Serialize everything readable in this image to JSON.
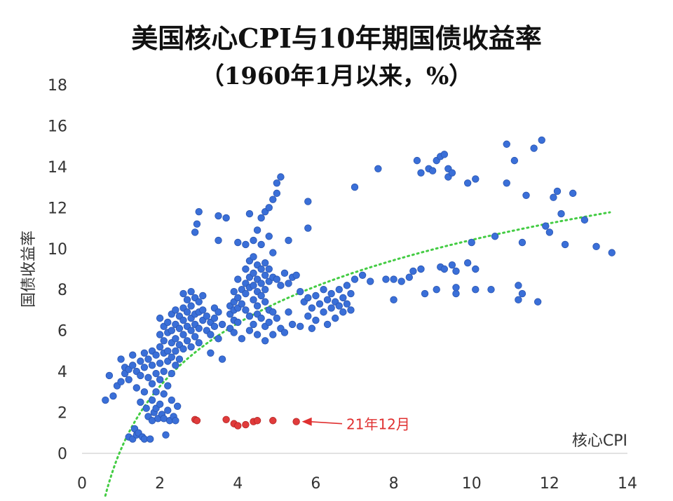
{
  "chart_data": {
    "type": "scatter",
    "title": "美国核心CPI与10年期国债收益率",
    "subtitle": "（1960年1月以来，%）",
    "xlabel": "核心CPI",
    "ylabel": "国债收益率",
    "xlim": [
      0,
      14
    ],
    "ylim": [
      0,
      18
    ],
    "x_ticks": [
      "0",
      "2",
      "4",
      "6",
      "8",
      "10",
      "12",
      "14"
    ],
    "y_ticks": [
      "0",
      "2",
      "4",
      "6",
      "8",
      "10",
      "12",
      "14",
      "16",
      "18"
    ],
    "grid": false,
    "legend": "none",
    "colors": {
      "historical": "#3a6fd8",
      "recent": "#e03b3b",
      "trendline": "#44cc44",
      "annotation": "#e03030"
    },
    "trendline": {
      "type": "logarithmic",
      "style": "dotted"
    },
    "annotation": {
      "text": "21年12月",
      "x": 5.5,
      "y": 1.55
    },
    "series": [
      {
        "points": [
          [
            0.6,
            2.6
          ],
          [
            0.7,
            3.8
          ],
          [
            0.8,
            2.8
          ],
          [
            0.9,
            3.3
          ],
          [
            1.0,
            3.5
          ],
          [
            1.0,
            4.6
          ],
          [
            1.1,
            4.2
          ],
          [
            1.1,
            3.9
          ],
          [
            1.2,
            4.1
          ],
          [
            1.2,
            3.6
          ],
          [
            1.2,
            0.8
          ],
          [
            1.3,
            4.8
          ],
          [
            1.3,
            4.3
          ],
          [
            1.3,
            0.7
          ],
          [
            1.35,
            1.2
          ],
          [
            1.4,
            4.0
          ],
          [
            1.4,
            3.2
          ],
          [
            1.4,
            0.9
          ],
          [
            1.45,
            1.0
          ],
          [
            1.5,
            4.5
          ],
          [
            1.5,
            3.8
          ],
          [
            1.5,
            2.5
          ],
          [
            1.55,
            0.8
          ],
          [
            1.6,
            4.9
          ],
          [
            1.6,
            4.2
          ],
          [
            1.6,
            3.0
          ],
          [
            1.6,
            0.7
          ],
          [
            1.65,
            2.2
          ],
          [
            1.7,
            4.6
          ],
          [
            1.7,
            3.7
          ],
          [
            1.7,
            1.8
          ],
          [
            1.75,
            0.7
          ],
          [
            1.8,
            5.0
          ],
          [
            1.8,
            4.3
          ],
          [
            1.8,
            3.4
          ],
          [
            1.8,
            2.6
          ],
          [
            1.8,
            1.6
          ],
          [
            1.85,
            2.0
          ],
          [
            1.9,
            4.8
          ],
          [
            1.9,
            3.9
          ],
          [
            1.9,
            3.0
          ],
          [
            1.9,
            2.2
          ],
          [
            1.95,
            1.7
          ],
          [
            2.0,
            6.6
          ],
          [
            2.0,
            5.8
          ],
          [
            2.0,
            5.2
          ],
          [
            2.0,
            4.4
          ],
          [
            2.0,
            3.6
          ],
          [
            2.0,
            2.4
          ],
          [
            2.05,
            1.9
          ],
          [
            2.1,
            6.2
          ],
          [
            2.1,
            5.5
          ],
          [
            2.1,
            4.9
          ],
          [
            2.1,
            4.0
          ],
          [
            2.1,
            2.9
          ],
          [
            2.1,
            1.7
          ],
          [
            2.15,
            0.9
          ],
          [
            2.2,
            6.4
          ],
          [
            2.2,
            5.9
          ],
          [
            2.2,
            5.0
          ],
          [
            2.2,
            4.5
          ],
          [
            2.2,
            3.3
          ],
          [
            2.2,
            2.1
          ],
          [
            2.25,
            1.6
          ],
          [
            2.3,
            6.8
          ],
          [
            2.3,
            6.0
          ],
          [
            2.3,
            5.4
          ],
          [
            2.3,
            4.7
          ],
          [
            2.3,
            3.9
          ],
          [
            2.3,
            2.6
          ],
          [
            2.35,
            1.8
          ],
          [
            2.4,
            7.0
          ],
          [
            2.4,
            6.3
          ],
          [
            2.4,
            5.6
          ],
          [
            2.4,
            5.0
          ],
          [
            2.4,
            4.3
          ],
          [
            2.4,
            1.6
          ],
          [
            2.45,
            2.3
          ],
          [
            2.5,
            6.7
          ],
          [
            2.5,
            6.1
          ],
          [
            2.5,
            5.3
          ],
          [
            2.5,
            4.6
          ],
          [
            2.6,
            7.8
          ],
          [
            2.6,
            7.1
          ],
          [
            2.6,
            6.5
          ],
          [
            2.6,
            5.8
          ],
          [
            2.6,
            5.1
          ],
          [
            2.7,
            7.5
          ],
          [
            2.7,
            6.9
          ],
          [
            2.7,
            6.2
          ],
          [
            2.7,
            5.5
          ],
          [
            2.8,
            7.9
          ],
          [
            2.8,
            7.2
          ],
          [
            2.8,
            6.6
          ],
          [
            2.8,
            6.0
          ],
          [
            2.8,
            5.2
          ],
          [
            2.9,
            7.6
          ],
          [
            2.9,
            6.8
          ],
          [
            2.9,
            6.3
          ],
          [
            2.9,
            5.7
          ],
          [
            2.9,
            10.8
          ],
          [
            2.95,
            11.2
          ],
          [
            3.0,
            11.8
          ],
          [
            3.0,
            7.4
          ],
          [
            3.0,
            6.9
          ],
          [
            3.0,
            6.1
          ],
          [
            3.0,
            5.4
          ],
          [
            3.1,
            7.7
          ],
          [
            3.1,
            7.0
          ],
          [
            3.1,
            6.5
          ],
          [
            3.2,
            6.7
          ],
          [
            3.2,
            6.0
          ],
          [
            3.3,
            6.4
          ],
          [
            3.3,
            5.8
          ],
          [
            3.3,
            4.9
          ],
          [
            3.4,
            7.1
          ],
          [
            3.4,
            6.6
          ],
          [
            3.4,
            6.2
          ],
          [
            3.5,
            6.9
          ],
          [
            3.5,
            5.6
          ],
          [
            3.5,
            10.4
          ],
          [
            3.5,
            11.6
          ],
          [
            3.6,
            6.3
          ],
          [
            3.6,
            4.6
          ],
          [
            3.7,
            11.5
          ],
          [
            3.8,
            7.2
          ],
          [
            3.8,
            6.8
          ],
          [
            3.8,
            6.1
          ],
          [
            3.9,
            7.9
          ],
          [
            3.9,
            7.4
          ],
          [
            3.9,
            7.0
          ],
          [
            3.9,
            6.5
          ],
          [
            3.9,
            5.9
          ],
          [
            4.0,
            10.3
          ],
          [
            4.0,
            8.5
          ],
          [
            4.0,
            7.6
          ],
          [
            4.0,
            7.1
          ],
          [
            4.0,
            6.4
          ],
          [
            4.1,
            8.0
          ],
          [
            4.1,
            7.3
          ],
          [
            4.1,
            5.6
          ],
          [
            4.2,
            10.2
          ],
          [
            4.2,
            9.0
          ],
          [
            4.2,
            8.3
          ],
          [
            4.2,
            7.8
          ],
          [
            4.2,
            7.0
          ],
          [
            4.3,
            11.7
          ],
          [
            4.3,
            9.4
          ],
          [
            4.3,
            8.6
          ],
          [
            4.3,
            8.1
          ],
          [
            4.3,
            6.7
          ],
          [
            4.3,
            6.0
          ],
          [
            4.4,
            10.4
          ],
          [
            4.4,
            9.6
          ],
          [
            4.4,
            8.8
          ],
          [
            4.4,
            8.2
          ],
          [
            4.4,
            7.5
          ],
          [
            4.4,
            6.3
          ],
          [
            4.5,
            10.9
          ],
          [
            4.5,
            9.2
          ],
          [
            4.5,
            8.5
          ],
          [
            4.5,
            7.9
          ],
          [
            4.5,
            7.2
          ],
          [
            4.5,
            6.8
          ],
          [
            4.5,
            5.8
          ],
          [
            4.6,
            11.5
          ],
          [
            4.6,
            10.2
          ],
          [
            4.6,
            9.0
          ],
          [
            4.6,
            8.3
          ],
          [
            4.6,
            7.7
          ],
          [
            4.6,
            6.6
          ],
          [
            4.7,
            11.8
          ],
          [
            4.7,
            9.3
          ],
          [
            4.7,
            8.7
          ],
          [
            4.7,
            8.0
          ],
          [
            4.7,
            7.4
          ],
          [
            4.7,
            6.2
          ],
          [
            4.7,
            5.5
          ],
          [
            4.8,
            12.0
          ],
          [
            4.8,
            10.6
          ],
          [
            4.8,
            9.0
          ],
          [
            4.8,
            8.4
          ],
          [
            4.8,
            7.0
          ],
          [
            4.8,
            6.4
          ],
          [
            4.9,
            12.4
          ],
          [
            4.9,
            9.8
          ],
          [
            4.9,
            8.6
          ],
          [
            4.9,
            6.9
          ],
          [
            4.9,
            5.8
          ],
          [
            5.0,
            12.7
          ],
          [
            5.0,
            13.2
          ],
          [
            5.0,
            8.5
          ],
          [
            5.0,
            6.6
          ],
          [
            5.1,
            13.5
          ],
          [
            5.1,
            8.2
          ],
          [
            5.1,
            6.1
          ],
          [
            5.2,
            8.8
          ],
          [
            5.2,
            5.9
          ],
          [
            5.3,
            10.4
          ],
          [
            5.3,
            8.3
          ],
          [
            5.3,
            6.9
          ],
          [
            5.4,
            8.6
          ],
          [
            5.4,
            6.3
          ],
          [
            5.5,
            8.7
          ],
          [
            5.6,
            7.9
          ],
          [
            5.6,
            6.2
          ],
          [
            5.7,
            7.4
          ],
          [
            5.8,
            12.3
          ],
          [
            5.8,
            11.0
          ],
          [
            5.8,
            7.6
          ],
          [
            5.8,
            6.7
          ],
          [
            5.9,
            7.1
          ],
          [
            5.9,
            6.1
          ],
          [
            6.0,
            7.7
          ],
          [
            6.0,
            6.5
          ],
          [
            6.1,
            7.3
          ],
          [
            6.2,
            8.0
          ],
          [
            6.2,
            6.9
          ],
          [
            6.3,
            7.5
          ],
          [
            6.3,
            6.3
          ],
          [
            6.4,
            7.8
          ],
          [
            6.4,
            7.1
          ],
          [
            6.5,
            7.4
          ],
          [
            6.5,
            6.6
          ],
          [
            6.6,
            8.0
          ],
          [
            6.6,
            7.2
          ],
          [
            6.7,
            7.6
          ],
          [
            6.7,
            6.9
          ],
          [
            6.8,
            8.2
          ],
          [
            6.8,
            7.3
          ],
          [
            6.9,
            7.8
          ],
          [
            6.9,
            7.0
          ],
          [
            7.0,
            8.5
          ],
          [
            7.0,
            13.0
          ],
          [
            7.2,
            8.7
          ],
          [
            7.4,
            8.4
          ],
          [
            7.6,
            13.9
          ],
          [
            7.8,
            8.5
          ],
          [
            8.0,
            7.5
          ],
          [
            8.0,
            8.5
          ],
          [
            8.2,
            8.4
          ],
          [
            8.4,
            8.6
          ],
          [
            8.5,
            8.9
          ],
          [
            8.6,
            14.3
          ],
          [
            8.7,
            13.7
          ],
          [
            8.7,
            9.0
          ],
          [
            8.8,
            7.8
          ],
          [
            8.9,
            13.9
          ],
          [
            9.0,
            13.8
          ],
          [
            9.1,
            8.0
          ],
          [
            9.1,
            14.3
          ],
          [
            9.2,
            14.5
          ],
          [
            9.2,
            9.1
          ],
          [
            9.3,
            14.6
          ],
          [
            9.3,
            9.0
          ],
          [
            9.4,
            13.9
          ],
          [
            9.4,
            13.5
          ],
          [
            9.5,
            13.7
          ],
          [
            9.5,
            9.2
          ],
          [
            9.6,
            8.9
          ],
          [
            9.6,
            7.8
          ],
          [
            9.6,
            8.1
          ],
          [
            9.9,
            9.3
          ],
          [
            9.9,
            13.2
          ],
          [
            10.0,
            10.3
          ],
          [
            10.1,
            13.4
          ],
          [
            10.1,
            9.0
          ],
          [
            10.1,
            8.0
          ],
          [
            10.5,
            8.0
          ],
          [
            10.6,
            10.6
          ],
          [
            10.9,
            15.1
          ],
          [
            10.9,
            13.2
          ],
          [
            11.1,
            14.3
          ],
          [
            11.2,
            7.5
          ],
          [
            11.2,
            8.2
          ],
          [
            11.3,
            10.3
          ],
          [
            11.3,
            7.8
          ],
          [
            11.4,
            12.6
          ],
          [
            11.6,
            14.9
          ],
          [
            11.7,
            7.4
          ],
          [
            11.8,
            15.3
          ],
          [
            11.9,
            11.1
          ],
          [
            12.0,
            10.8
          ],
          [
            12.1,
            12.5
          ],
          [
            12.2,
            12.8
          ],
          [
            12.3,
            11.7
          ],
          [
            12.4,
            10.2
          ],
          [
            12.6,
            12.7
          ],
          [
            12.9,
            11.4
          ],
          [
            13.2,
            10.1
          ],
          [
            13.6,
            9.8
          ]
        ]
      },
      {
        "points": [
          [
            2.9,
            1.65
          ],
          [
            2.95,
            1.6
          ],
          [
            3.7,
            1.65
          ],
          [
            3.9,
            1.45
          ],
          [
            4.0,
            1.35
          ],
          [
            4.2,
            1.4
          ],
          [
            4.4,
            1.55
          ],
          [
            4.5,
            1.6
          ],
          [
            4.9,
            1.6
          ],
          [
            5.5,
            1.55
          ]
        ]
      }
    ]
  }
}
